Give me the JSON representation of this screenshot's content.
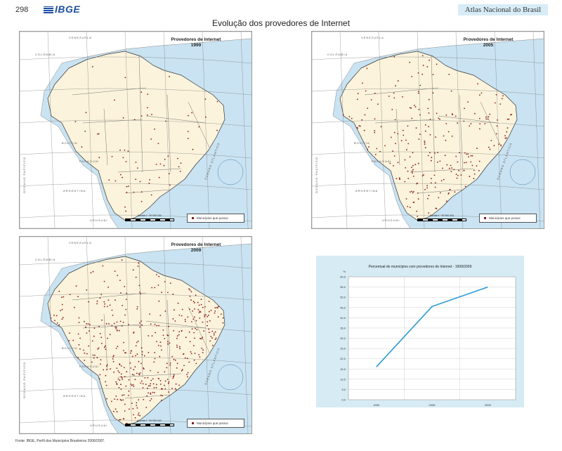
{
  "header": {
    "page_number": "298",
    "logo_text": "IBGE",
    "atlas_title": "Atlas Nacional do Brasil"
  },
  "page_title": "Evolução dos provedores de Internet",
  "maps": [
    {
      "title_line1": "Provedores de Internet",
      "year": "1999",
      "legend": "Municípios que possui",
      "scale": "Escala 1 : 30 000 000"
    },
    {
      "title_line1": "Provedores de Internet",
      "year": "2005",
      "legend": "Municípios que possui",
      "scale": "Escala 1 : 30 000 000"
    },
    {
      "title_line1": "Provedores de Internet",
      "year": "2009",
      "legend": "Municípios que possui",
      "scale": "Escala 1 : 30 000 000"
    }
  ],
  "map_labels": {
    "colombia": "COLÔMBIA",
    "venezuela": "VENEZUELA",
    "bolivia": "BOLÍVIA",
    "paraguai": "PARAGUAI",
    "argentina": "ARGENTINA",
    "uruguai": "URUGUAI",
    "oceano_pacifico": "OCEANO PACÍFICO",
    "oceano_atlantico": "OCEANO ATLÂNTICO"
  },
  "colors": {
    "ocean": "#c9e3f2",
    "land_brazil": "#fbf3dc",
    "land_neighbors": "#ffffff",
    "dot": "#8b1a1a",
    "chart_line": "#2a9ad6",
    "chart_bg": "#d6ebf4"
  },
  "dot_density": {
    "1999": 0.22,
    "2005": 0.62,
    "2009": 0.95
  },
  "chart_data": {
    "type": "line",
    "title": "Percentual de municípios com provedores de Internet - 1999/2009",
    "ylabel": "%",
    "xlabel": "",
    "categories": [
      "1999",
      "2005",
      "2009"
    ],
    "series": [
      {
        "values": [
          16,
          45.5,
          55
        ]
      }
    ],
    "ylim": [
      0,
      60
    ],
    "yticks": [
      "0,0",
      "5,0",
      "10,0",
      "15,0",
      "20,0",
      "25,0",
      "30,0",
      "35,0",
      "40,0",
      "45,0",
      "50,0",
      "55,0",
      "60,0"
    ],
    "grid": true
  },
  "source": "Fonte: IBGE, Perfil dos Municípios Brasileiros 2006/2007."
}
